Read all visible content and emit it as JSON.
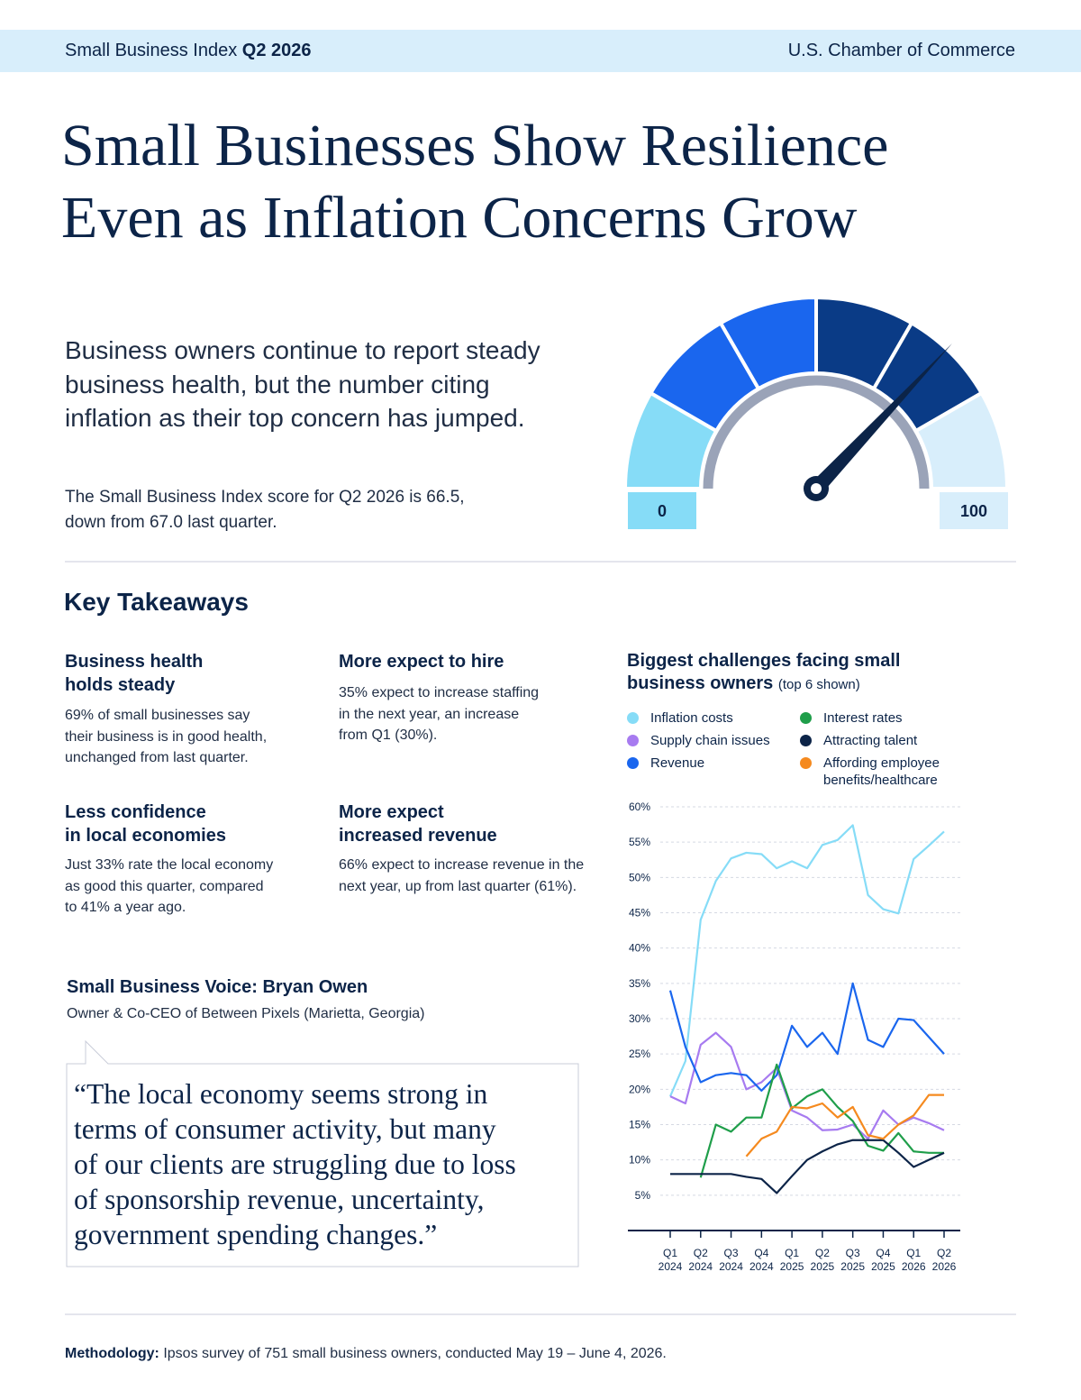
{
  "header": {
    "left": "Small Business Index",
    "left_bold": "Q2 2026",
    "right": "U.S. Chamber of Commerce"
  },
  "title": "Small Businesses Show Resilience\nEven as Inflation Concerns Grow",
  "intro": "Business owners continue to report steady\nbusiness health, but the number citing\ninflation as their top concern has jumped.",
  "score_text": "The Small Business Index score for Q2 2026 is 66.5,\ndown from 67.0 last quarter.",
  "gauge": {
    "min": 0,
    "max": 100
  },
  "key_takeaways": {
    "title": "Key Takeaways",
    "items": [
      {
        "heading": "Business health\nholds steady",
        "text": "69% of small businesses say\ntheir business is in good health,\nunchanged from last quarter."
      },
      {
        "heading": "More expect to hire",
        "text": "35% expect to increase staffing\nin the next year, an increase\nfrom Q1 (30%)."
      },
      {
        "heading": "Less confidence\nin local economies",
        "text": "Just 33% rate the local economy\nas good this quarter, compared\nto 41% a year ago."
      },
      {
        "heading": "More expect\nincreased revenue",
        "text": "66% expect to increase revenue in the\nnext year, up from last quarter (61%)."
      }
    ]
  },
  "voice": {
    "title": "Small Business Voice: Bryan Owen",
    "subtitle": "Owner & Co-CEO of Between Pixels (Marietta, Georgia)",
    "quote": "“The local economy seems strong in\nterms of consumer activity, but many\nof our clients are struggling due to loss\nof sponsorship revenue, uncertainty,\ngovernment spending changes.”"
  },
  "methodology": {
    "label": "Methodology:",
    "text": "Ipsos survey of 751 small business owners, conducted May 19 – June 4, 2026."
  },
  "chart_data": {
    "type": "line",
    "title": "Biggest challenges facing small business owners",
    "subtitle": "(top 6 shown)",
    "categories": [
      "Q1 2024",
      null,
      "Q2 2024",
      null,
      "Q3 2024",
      null,
      "Q4 2024",
      null,
      "Q1 2025",
      null,
      "Q2 2025",
      null,
      "Q3 2025",
      null,
      "Q4 2025",
      null,
      "Q1 2026",
      null,
      "Q2 2026"
    ],
    "series": [
      {
        "name": "Inflation costs",
        "color": "#86dcf7",
        "values": [
          19,
          24,
          44,
          49.5,
          52.7,
          53.5,
          53.3,
          51.3,
          52.3,
          51.3,
          54.6,
          55.3,
          57.4,
          47.5,
          45.5,
          44.9,
          52.6,
          54.5,
          56.5
        ]
      },
      {
        "name": "Supply chain issues",
        "color": "#a77bf0",
        "values": [
          19,
          18,
          26.3,
          28,
          26,
          20,
          21,
          23,
          17,
          16,
          14.2,
          14.3,
          15,
          13,
          17,
          15,
          16,
          15.2,
          14.2
        ]
      },
      {
        "name": "Revenue",
        "color": "#1a66ee",
        "values": [
          34,
          26,
          21,
          22,
          22.3,
          22,
          19.8,
          22,
          29,
          26,
          28,
          25,
          35,
          27,
          26,
          30,
          29.8,
          27.4,
          25
        ]
      },
      {
        "name": "Interest rates",
        "color": "#1f9e4a",
        "values": [
          null,
          null,
          7.5,
          15,
          14,
          16,
          16,
          23.5,
          17.3,
          19,
          20,
          17.5,
          15.5,
          12,
          11.3,
          13.8,
          11.2,
          11,
          11
        ]
      },
      {
        "name": "Attracting talent",
        "color": "#0c2448",
        "values": [
          8,
          8,
          8,
          8,
          8,
          7.6,
          7.3,
          5.3,
          7.7,
          10,
          11.2,
          12.2,
          12.8,
          12.8,
          12.8,
          11,
          9,
          10,
          11
        ]
      },
      {
        "name": "Affording employee benefits/healthcare",
        "color": "#f58a1f",
        "values": [
          null,
          null,
          null,
          null,
          null,
          10.5,
          13,
          14,
          17.5,
          17.3,
          18,
          16,
          17.5,
          13.5,
          13,
          15,
          16.3,
          19.2,
          19.2
        ]
      }
    ],
    "ylim": [
      0,
      60
    ],
    "yticks": [
      {
        "value": 5,
        "label": "5%"
      },
      {
        "value": 10,
        "label": "10%"
      },
      {
        "value": 15,
        "label": "15%"
      },
      {
        "value": 20,
        "label": "20%"
      },
      {
        "value": 25,
        "label": "25%"
      },
      {
        "value": 30,
        "label": "30%"
      },
      {
        "value": 35,
        "label": "35%"
      },
      {
        "value": 40,
        "label": "40%"
      },
      {
        "value": 45,
        "label": "45%"
      },
      {
        "value": 50,
        "label": "50%"
      },
      {
        "value": 55,
        "label": "55%"
      },
      {
        "value": 60,
        "label": "60%"
      }
    ],
    "grid": true
  }
}
